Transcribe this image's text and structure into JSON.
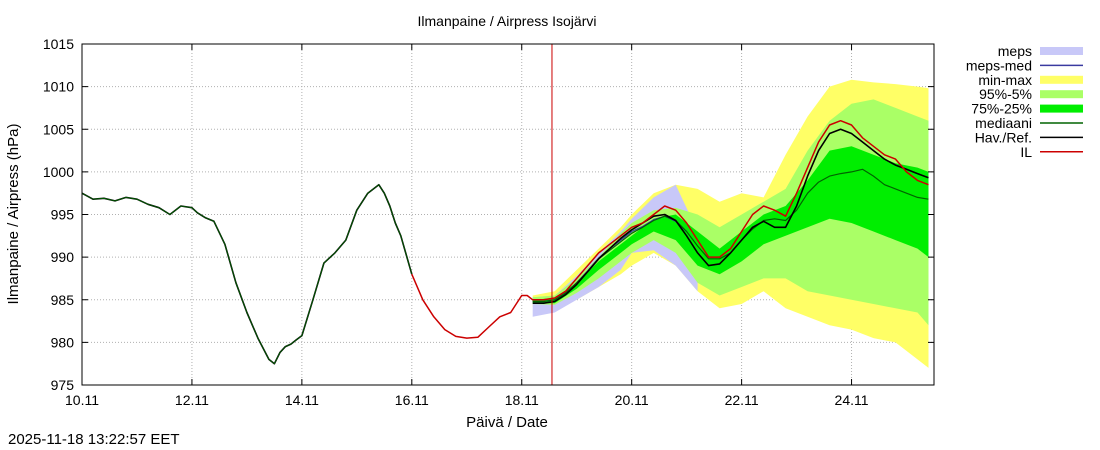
{
  "chart_data": {
    "type": "line",
    "title": "Ilmanpaine / Airpress Isojärvi",
    "xlabel": "Päivä / Date",
    "ylabel": "Ilmanpaine / Airpress (hPa)",
    "ylim": [
      975,
      1015
    ],
    "xlim": [
      10.0,
      25.5
    ],
    "yticks": [
      975,
      980,
      985,
      990,
      995,
      1000,
      1005,
      1010,
      1015
    ],
    "xticks": [
      {
        "v": 10,
        "label": "10.11"
      },
      {
        "v": 12,
        "label": "12.11"
      },
      {
        "v": 14,
        "label": "14.11"
      },
      {
        "v": 16,
        "label": "16.11"
      },
      {
        "v": 18,
        "label": "18.11"
      },
      {
        "v": 20,
        "label": "20.11"
      },
      {
        "v": 22,
        "label": "22.11"
      },
      {
        "v": 24,
        "label": "24.11"
      }
    ],
    "grid": true,
    "now_line_x": 18.55,
    "legend": [
      {
        "label": "meps",
        "color": "#c8c8f8",
        "style": "band"
      },
      {
        "label": "meps-med",
        "color": "#3a3aa0",
        "style": "line"
      },
      {
        "label": "min-max",
        "color": "#ffff66",
        "style": "band"
      },
      {
        "label": "95%-5%",
        "color": "#aaff66",
        "style": "band"
      },
      {
        "label": "75%-25%",
        "color": "#00ee00",
        "style": "band"
      },
      {
        "label": "mediaani",
        "color": "#006400",
        "style": "line"
      },
      {
        "label": "Hav./Ref.",
        "color": "#000000",
        "style": "line"
      },
      {
        "label": "IL",
        "color": "#cc0000",
        "style": "line"
      }
    ],
    "series": {
      "observed": {
        "name": "Hav./Ref.",
        "x": [
          10.0,
          10.2,
          10.4,
          10.6,
          10.8,
          11.0,
          11.2,
          11.4,
          11.6,
          11.8,
          12.0,
          12.1,
          12.25,
          12.4,
          12.6,
          12.8,
          13.0,
          13.2,
          13.4,
          13.5,
          13.6,
          13.7,
          13.8,
          13.9,
          14.0,
          14.2,
          14.4,
          14.6,
          14.8,
          15.0,
          15.2,
          15.4,
          15.5,
          15.6,
          15.7,
          15.8,
          16.0
        ],
        "y": [
          997.5,
          996.8,
          996.9,
          996.6,
          997.0,
          996.8,
          996.2,
          995.8,
          995.0,
          996.0,
          995.8,
          995.2,
          994.6,
          994.2,
          991.5,
          987.0,
          983.5,
          980.5,
          978.0,
          977.5,
          978.8,
          979.5,
          979.8,
          980.3,
          980.8,
          985.0,
          989.3,
          990.5,
          992.0,
          995.5,
          997.5,
          998.5,
          997.5,
          996.0,
          994.0,
          992.5,
          988.0
        ]
      },
      "il": {
        "name": "IL",
        "x": [
          16.0,
          16.2,
          16.4,
          16.6,
          16.8,
          17.0,
          17.2,
          17.4,
          17.6,
          17.8,
          17.9,
          18.0,
          18.1,
          18.2,
          18.4,
          18.6,
          18.8,
          19.0,
          19.2,
          19.4,
          19.6,
          19.8,
          20.0,
          20.2,
          20.4,
          20.6,
          20.8,
          21.0,
          21.2,
          21.4,
          21.6,
          21.8,
          22.0,
          22.2,
          22.4,
          22.6,
          22.8,
          23.0,
          23.2,
          23.4,
          23.6,
          23.8,
          24.0,
          24.2,
          24.4,
          24.6,
          24.8,
          25.0,
          25.2,
          25.4
        ],
        "y": [
          988.0,
          985.0,
          983.0,
          981.5,
          980.7,
          980.5,
          980.6,
          981.8,
          983.0,
          983.5,
          984.5,
          985.5,
          985.5,
          985.0,
          985.0,
          985.2,
          986.0,
          987.5,
          989.0,
          990.5,
          991.5,
          992.5,
          993.5,
          994.0,
          995.0,
          996.0,
          995.5,
          994.0,
          992.0,
          990.0,
          990.0,
          991.0,
          993.0,
          995.0,
          996.0,
          995.5,
          994.8,
          997.5,
          1000.5,
          1003.5,
          1005.5,
          1006.0,
          1005.5,
          1004.0,
          1003.0,
          1002.0,
          1001.5,
          1000.0,
          999.0,
          998.5
        ]
      },
      "mediaani": {
        "name": "mediaani",
        "x": [
          18.2,
          18.4,
          18.6,
          18.8,
          19.0,
          19.2,
          19.4,
          19.6,
          19.8,
          20.0,
          20.2,
          20.4,
          20.6,
          20.8,
          21.0,
          21.2,
          21.4,
          21.6,
          21.8,
          22.0,
          22.2,
          22.4,
          22.6,
          22.8,
          23.0,
          23.2,
          23.4,
          23.6,
          23.8,
          24.0,
          24.2,
          24.4,
          24.6,
          24.8,
          25.0,
          25.2,
          25.4
        ],
        "y": [
          984.8,
          984.8,
          985.0,
          985.8,
          987.0,
          988.3,
          989.8,
          990.8,
          991.8,
          992.8,
          993.5,
          994.3,
          994.8,
          994.3,
          993.0,
          991.3,
          989.8,
          989.8,
          990.5,
          992.0,
          993.3,
          994.3,
          994.5,
          994.3,
          995.5,
          997.5,
          998.8,
          999.5,
          999.8,
          1000.0,
          1000.3,
          999.5,
          998.5,
          998.0,
          997.5,
          997.0,
          996.8
        ]
      },
      "hav_forecast": {
        "name": "Hav./Ref.",
        "x": [
          18.2,
          18.4,
          18.6,
          18.8,
          19.0,
          19.2,
          19.4,
          19.6,
          19.8,
          20.0,
          20.2,
          20.4,
          20.6,
          20.8,
          21.0,
          21.2,
          21.4,
          21.6,
          21.8,
          22.0,
          22.2,
          22.4,
          22.6,
          22.8,
          23.0,
          23.2,
          23.4,
          23.6,
          23.8,
          24.0,
          24.2,
          24.4,
          24.6,
          24.8,
          25.0,
          25.2,
          25.4
        ],
        "y": [
          984.6,
          984.6,
          984.8,
          985.6,
          986.8,
          988.3,
          989.8,
          991.0,
          992.2,
          993.2,
          994.0,
          994.8,
          995.0,
          994.3,
          992.5,
          990.5,
          989.0,
          989.2,
          990.5,
          992.0,
          993.5,
          994.2,
          993.5,
          993.5,
          996.0,
          999.5,
          1002.5,
          1004.5,
          1005.0,
          1004.5,
          1003.5,
          1002.5,
          1001.5,
          1000.8,
          1000.3,
          999.8,
          999.3
        ]
      },
      "meps_med": {
        "name": "meps-med",
        "x": [
          18.2,
          18.4,
          18.6,
          18.8,
          19.0,
          19.2,
          19.4,
          19.6,
          19.8,
          20.0,
          20.2,
          20.4,
          20.6,
          20.8,
          21.0
        ],
        "y": [
          984.8,
          984.8,
          985.0,
          985.8,
          987.0,
          988.4,
          989.9,
          991.0,
          992.0,
          993.0,
          993.6,
          994.4,
          994.8,
          994.2,
          993.0
        ]
      }
    },
    "bands": {
      "minmax": {
        "x": [
          18.2,
          18.6,
          19.0,
          19.4,
          19.8,
          20.0,
          20.4,
          20.8,
          21.2,
          21.6,
          22.0,
          22.4,
          22.8,
          23.2,
          23.6,
          24.0,
          24.4,
          24.8,
          25.2,
          25.4
        ],
        "upper": [
          985.5,
          986.0,
          988.5,
          991.0,
          993.5,
          995.0,
          997.5,
          998.5,
          998.0,
          996.5,
          997.5,
          997.0,
          1002.0,
          1006.5,
          1010.0,
          1010.8,
          1010.5,
          1010.3,
          1010.0,
          1009.8
        ],
        "lower": [
          984.2,
          984.0,
          985.0,
          986.5,
          988.0,
          989.0,
          990.5,
          989.0,
          986.0,
          984.0,
          984.5,
          986.0,
          984.0,
          983.0,
          982.0,
          981.5,
          980.5,
          980.0,
          978.0,
          977.0
        ]
      },
      "p95_5": {
        "x": [
          18.2,
          18.6,
          19.0,
          19.4,
          19.8,
          20.0,
          20.4,
          20.8,
          21.2,
          21.6,
          22.0,
          22.4,
          22.8,
          23.2,
          23.6,
          24.0,
          24.4,
          24.8,
          25.2,
          25.4
        ],
        "upper": [
          985.3,
          985.5,
          987.5,
          990.0,
          992.8,
          994.0,
          995.5,
          995.8,
          995.0,
          993.5,
          995.0,
          996.5,
          998.0,
          1002.5,
          1006.0,
          1008.0,
          1008.5,
          1007.5,
          1006.5,
          1006.0
        ],
        "lower": [
          984.5,
          984.4,
          985.8,
          987.5,
          989.5,
          990.5,
          992.0,
          990.5,
          987.0,
          985.5,
          986.5,
          987.5,
          987.5,
          986.0,
          985.5,
          985.0,
          984.5,
          984.0,
          983.5,
          982.0
        ]
      },
      "p75_25": {
        "x": [
          18.2,
          18.6,
          19.0,
          19.4,
          19.8,
          20.0,
          20.4,
          20.8,
          21.2,
          21.6,
          22.0,
          22.4,
          22.8,
          23.2,
          23.6,
          24.0,
          24.4,
          24.8,
          25.2,
          25.4
        ],
        "upper": [
          985.0,
          985.2,
          987.0,
          989.5,
          991.5,
          992.5,
          994.5,
          995.0,
          993.0,
          991.0,
          993.0,
          995.0,
          996.0,
          999.0,
          1002.5,
          1003.0,
          1002.0,
          1001.0,
          1000.5,
          1000.0
        ],
        "lower": [
          984.6,
          984.6,
          986.3,
          988.5,
          990.5,
          991.5,
          993.0,
          992.0,
          989.0,
          988.0,
          989.5,
          991.5,
          992.5,
          993.5,
          994.5,
          994.0,
          993.0,
          992.0,
          991.0,
          990.0
        ]
      },
      "meps": {
        "x": [
          18.2,
          18.6,
          19.0,
          19.4,
          19.8,
          20.0,
          20.4,
          20.8,
          21.2
        ],
        "upper": [
          985.3,
          985.5,
          987.8,
          990.5,
          993.0,
          994.5,
          997.0,
          998.5,
          993.0
        ],
        "lower": [
          983.0,
          983.5,
          985.0,
          986.5,
          988.5,
          990.5,
          990.8,
          989.0,
          986.0
        ]
      }
    }
  },
  "footer": {
    "timestamp": "2025-11-18 13:22:57 EET"
  }
}
